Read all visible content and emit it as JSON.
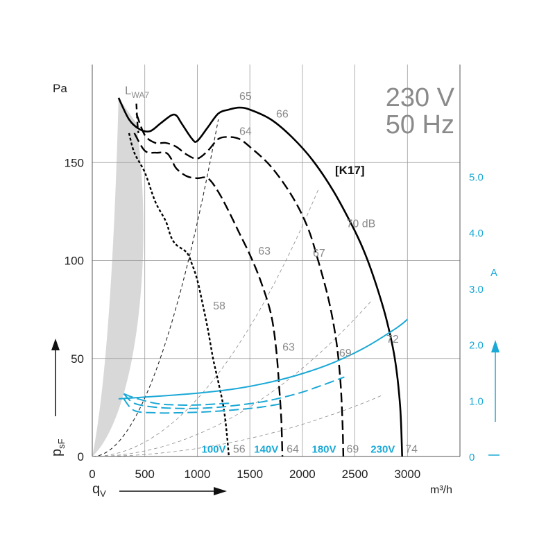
{
  "chart_data": {
    "type": "line",
    "title": "230 V",
    "subtitle": "50 Hz",
    "xlabel_symbol": "q",
    "xlabel_sub": "V",
    "xunit": "m³/h",
    "ylabel_symbol": "p",
    "ylabel_sub": "sF",
    "yunit": "Pa",
    "current_unit": "A",
    "model_label": "[K17]",
    "lwa_main": "L",
    "lwa_sub": "WA7",
    "xlim": [
      0,
      3500
    ],
    "ylim": [
      0,
      200
    ],
    "xticks": [
      0,
      500,
      1000,
      1500,
      2000,
      2500,
      3000
    ],
    "yticks": [
      0,
      50,
      100,
      150
    ],
    "current_ylim": [
      0,
      7
    ],
    "current_ticks": [
      {
        "v": 0,
        "label": "0"
      },
      {
        "v": 1,
        "label": "1.0"
      },
      {
        "v": 2,
        "label": "2.0"
      },
      {
        "v": 3,
        "label": "3.0"
      },
      {
        "v": 4,
        "label": "4.0"
      },
      {
        "v": 5,
        "label": "5.0"
      }
    ],
    "grid": true,
    "colors": {
      "pressure": "#000000",
      "current": "#1aa8d6",
      "grey": "#8a8a8a",
      "shade": "#d8d8d8"
    },
    "series": [
      {
        "name": "230V",
        "style": "solid",
        "points": [
          [
            250,
            183
          ],
          [
            350,
            172
          ],
          [
            450,
            167
          ],
          [
            550,
            166
          ],
          [
            650,
            170
          ],
          [
            750,
            174
          ],
          [
            800,
            174
          ],
          [
            850,
            170
          ],
          [
            950,
            162
          ],
          [
            1000,
            161
          ],
          [
            1100,
            168
          ],
          [
            1200,
            175
          ],
          [
            1300,
            177
          ],
          [
            1400,
            178
          ],
          [
            1500,
            177
          ],
          [
            1700,
            172
          ],
          [
            1900,
            163
          ],
          [
            2100,
            151
          ],
          [
            2300,
            135
          ],
          [
            2500,
            115
          ],
          [
            2600,
            103
          ],
          [
            2700,
            88
          ],
          [
            2800,
            70
          ],
          [
            2880,
            50
          ],
          [
            2930,
            26
          ],
          [
            2950,
            0
          ]
        ]
      },
      {
        "name": "180V",
        "style": "dash",
        "points": [
          [
            420,
            175
          ],
          [
            500,
            164
          ],
          [
            600,
            160
          ],
          [
            700,
            160
          ],
          [
            800,
            158
          ],
          [
            900,
            154
          ],
          [
            1000,
            152
          ],
          [
            1100,
            156
          ],
          [
            1200,
            162
          ],
          [
            1300,
            163
          ],
          [
            1400,
            162
          ],
          [
            1500,
            158
          ],
          [
            1700,
            148
          ],
          [
            1900,
            133
          ],
          [
            2050,
            117
          ],
          [
            2150,
            100
          ],
          [
            2250,
            80
          ],
          [
            2320,
            60
          ],
          [
            2360,
            40
          ],
          [
            2380,
            20
          ],
          [
            2390,
            0
          ]
        ]
      },
      {
        "name": "140V",
        "style": "dash",
        "points": [
          [
            400,
            165
          ],
          [
            500,
            156
          ],
          [
            600,
            155
          ],
          [
            700,
            155
          ],
          [
            750,
            152
          ],
          [
            800,
            147
          ],
          [
            900,
            143
          ],
          [
            1000,
            142
          ],
          [
            1100,
            142
          ],
          [
            1200,
            135
          ],
          [
            1300,
            125
          ],
          [
            1400,
            114
          ],
          [
            1500,
            103
          ],
          [
            1600,
            90
          ],
          [
            1700,
            73
          ],
          [
            1750,
            55
          ],
          [
            1780,
            35
          ],
          [
            1800,
            18
          ],
          [
            1810,
            0
          ]
        ]
      },
      {
        "name": "100V",
        "style": "dot",
        "points": [
          [
            350,
            165
          ],
          [
            400,
            155
          ],
          [
            500,
            145
          ],
          [
            600,
            130
          ],
          [
            700,
            120
          ],
          [
            750,
            112
          ],
          [
            800,
            108
          ],
          [
            900,
            104
          ],
          [
            950,
            98
          ],
          [
            1000,
            90
          ],
          [
            1050,
            78
          ],
          [
            1100,
            65
          ],
          [
            1150,
            50
          ],
          [
            1200,
            38
          ],
          [
            1250,
            25
          ],
          [
            1280,
            12
          ],
          [
            1300,
            0
          ]
        ]
      }
    ],
    "current_series": [
      {
        "name": "230V",
        "style": "solid",
        "points": [
          [
            250,
            1.03
          ],
          [
            500,
            1.06
          ],
          [
            800,
            1.1
          ],
          [
            1100,
            1.15
          ],
          [
            1400,
            1.22
          ],
          [
            1700,
            1.33
          ],
          [
            2000,
            1.48
          ],
          [
            2300,
            1.68
          ],
          [
            2600,
            1.95
          ],
          [
            2900,
            2.3
          ],
          [
            3000,
            2.45
          ]
        ]
      },
      {
        "name": "180V",
        "style": "dash",
        "points": [
          [
            300,
            1.12
          ],
          [
            400,
            0.95
          ],
          [
            600,
            0.88
          ],
          [
            800,
            0.86
          ],
          [
            1000,
            0.86
          ],
          [
            1200,
            0.88
          ],
          [
            1400,
            0.92
          ],
          [
            1600,
            0.97
          ],
          [
            1800,
            1.05
          ],
          [
            2000,
            1.15
          ],
          [
            2200,
            1.28
          ],
          [
            2400,
            1.42
          ]
        ]
      },
      {
        "name": "140V",
        "style": "dash",
        "points": [
          [
            300,
            1.03
          ],
          [
            400,
            0.82
          ],
          [
            600,
            0.78
          ],
          [
            800,
            0.78
          ],
          [
            1000,
            0.79
          ],
          [
            1200,
            0.81
          ],
          [
            1400,
            0.84
          ],
          [
            1600,
            0.88
          ],
          [
            1800,
            0.94
          ]
        ]
      },
      {
        "name": "100V",
        "style": "dash",
        "points": [
          [
            300,
            1.12
          ],
          [
            400,
            1.05
          ],
          [
            600,
            0.95
          ],
          [
            800,
            0.92
          ],
          [
            1000,
            0.92
          ],
          [
            1200,
            0.94
          ],
          [
            1300,
            0.95
          ]
        ]
      }
    ],
    "system_lines": [
      {
        "points": [
          [
            0,
            0
          ],
          [
            1200,
            172
          ]
        ]
      },
      {
        "points": [
          [
            0,
            0
          ],
          [
            2150,
            136
          ]
        ]
      },
      {
        "points": [
          [
            0,
            0
          ],
          [
            2650,
            79
          ]
        ]
      },
      {
        "points": [
          [
            0,
            0
          ],
          [
            2750,
            31
          ]
        ]
      }
    ],
    "annotations": [
      {
        "text": "65",
        "x": 1400,
        "y": 182,
        "cls": "grey"
      },
      {
        "text": "66",
        "x": 1750,
        "y": 173,
        "cls": "grey"
      },
      {
        "text": "64",
        "x": 1400,
        "y": 164,
        "cls": "grey"
      },
      {
        "text": "70 dB",
        "x": 2420,
        "y": 117,
        "cls": "grey"
      },
      {
        "text": "63",
        "x": 1580,
        "y": 103,
        "cls": "grey"
      },
      {
        "text": "67",
        "x": 2100,
        "y": 102,
        "cls": "grey"
      },
      {
        "text": "58",
        "x": 1150,
        "y": 75,
        "cls": "grey"
      },
      {
        "text": "63",
        "x": 1810,
        "y": 54,
        "cls": "grey"
      },
      {
        "text": "72",
        "x": 2800,
        "y": 58,
        "cls": "grey"
      },
      {
        "text": "69",
        "x": 2350,
        "y": 51,
        "cls": "grey"
      },
      {
        "text": "56",
        "x": 1340,
        "y": 2,
        "cls": "grey"
      },
      {
        "text": "64",
        "x": 1850,
        "y": 2,
        "cls": "grey"
      },
      {
        "text": "69",
        "x": 2420,
        "y": 2,
        "cls": "grey"
      },
      {
        "text": "74",
        "x": 2980,
        "y": 2,
        "cls": "grey"
      },
      {
        "text": "100V",
        "x": 1040,
        "y": 2,
        "cls": "blue"
      },
      {
        "text": "140V",
        "x": 1540,
        "y": 2,
        "cls": "blue"
      },
      {
        "text": "180V",
        "x": 2090,
        "y": 2,
        "cls": "blue"
      },
      {
        "text": "230V",
        "x": 2650,
        "y": 2,
        "cls": "blue"
      }
    ]
  }
}
